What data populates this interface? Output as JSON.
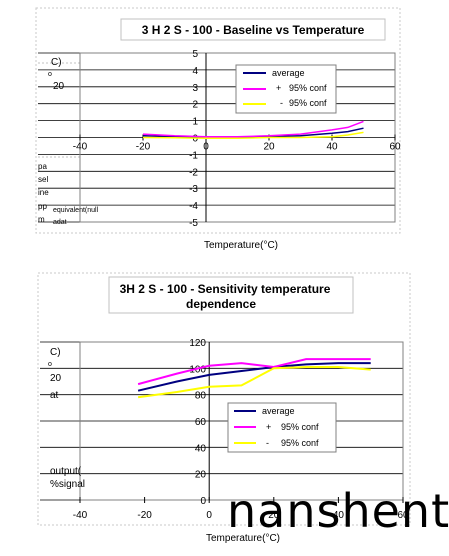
{
  "charts": [
    {
      "title": "3 H 2 S - 100 - Baseline  vs  Temperature",
      "xlabel": "Temperature(°C)",
      "ylabel_fragments": [
        "C)",
        "o",
        "20",
        "pa",
        "sel",
        "ine",
        "pp",
        "m",
        "equivalent(null",
        "adat"
      ],
      "x_ticks": [
        "-40",
        "-20",
        "0",
        "20",
        "40",
        "60"
      ],
      "y_ticks": [
        "5",
        "4",
        "3",
        "2",
        "1",
        "0",
        "-1",
        "-2",
        "-3",
        "-4",
        "-5"
      ],
      "legend": [
        {
          "label": "average",
          "prefix": ""
        },
        {
          "label": "95% conf",
          "prefix": "+"
        },
        {
          "label": "95% conf",
          "prefix": "-"
        }
      ]
    },
    {
      "title_line1": "3H 2 S - 100 - Sensitivity  temperature",
      "title_line2": "dependence",
      "xlabel": "Temperature(°C)",
      "ylabel_fragments": [
        "C)",
        "o",
        "20",
        "at",
        "output(",
        "%signal"
      ],
      "x_ticks": [
        "-40",
        "-20",
        "0",
        "20",
        "40",
        "60"
      ],
      "y_ticks": [
        "120",
        "100",
        "80",
        "60",
        "40",
        "20",
        "0"
      ],
      "legend": [
        {
          "label": "average",
          "prefix": ""
        },
        {
          "label": "95% conf",
          "prefix": "+"
        },
        {
          "label": "95% conf",
          "prefix": "-"
        }
      ]
    }
  ],
  "watermark": "nanshent",
  "colors": {
    "average": "#000080",
    "plus_conf": "#ff00ff",
    "minus_conf": "#ffff00"
  },
  "chart_data": [
    {
      "type": "line",
      "title": "3 H 2 S - 100 - Baseline  vs  Temperature",
      "xlabel": "Temperature(°C)",
      "xlim": [
        -40,
        60
      ],
      "ylim": [
        -5,
        5
      ],
      "grid": true,
      "legend_position": "top-right",
      "series": [
        {
          "name": "average",
          "x": [
            -20,
            -10,
            0,
            10,
            20,
            30,
            40,
            45,
            50
          ],
          "y": [
            0.1,
            0.05,
            0.0,
            0.0,
            0.05,
            0.1,
            0.25,
            0.35,
            0.55
          ]
        },
        {
          "name": "+ 95% conf",
          "x": [
            -20,
            -10,
            0,
            10,
            20,
            30,
            40,
            45,
            50
          ],
          "y": [
            0.2,
            0.1,
            0.05,
            0.05,
            0.1,
            0.2,
            0.45,
            0.6,
            0.95
          ]
        },
        {
          "name": "- 95% conf",
          "x": [
            -20,
            -10,
            0,
            10,
            20,
            30,
            40,
            45,
            50
          ],
          "y": [
            0.0,
            -0.02,
            -0.05,
            -0.05,
            0.0,
            0.0,
            0.05,
            0.15,
            0.3
          ]
        }
      ]
    },
    {
      "type": "line",
      "title": "3H 2 S - 100 - Sensitivity  temperature dependence",
      "xlabel": "Temperature(°C)",
      "xlim": [
        -40,
        60
      ],
      "ylim": [
        0,
        120
      ],
      "grid": true,
      "legend_position": "center-right",
      "series": [
        {
          "name": "average",
          "x": [
            -22,
            -10,
            0,
            10,
            20,
            30,
            40,
            50
          ],
          "y": [
            83,
            90,
            95,
            98,
            101,
            103,
            104,
            104
          ]
        },
        {
          "name": "+ 95% conf",
          "x": [
            -22,
            -10,
            0,
            10,
            20,
            30,
            40,
            50
          ],
          "y": [
            88,
            96,
            102,
            104,
            101,
            107,
            107,
            107
          ]
        },
        {
          "name": "- 95% conf",
          "x": [
            -22,
            -10,
            0,
            10,
            20,
            30,
            40,
            50
          ],
          "y": [
            78,
            82,
            86,
            87,
            100,
            101,
            101,
            99
          ]
        }
      ]
    }
  ]
}
